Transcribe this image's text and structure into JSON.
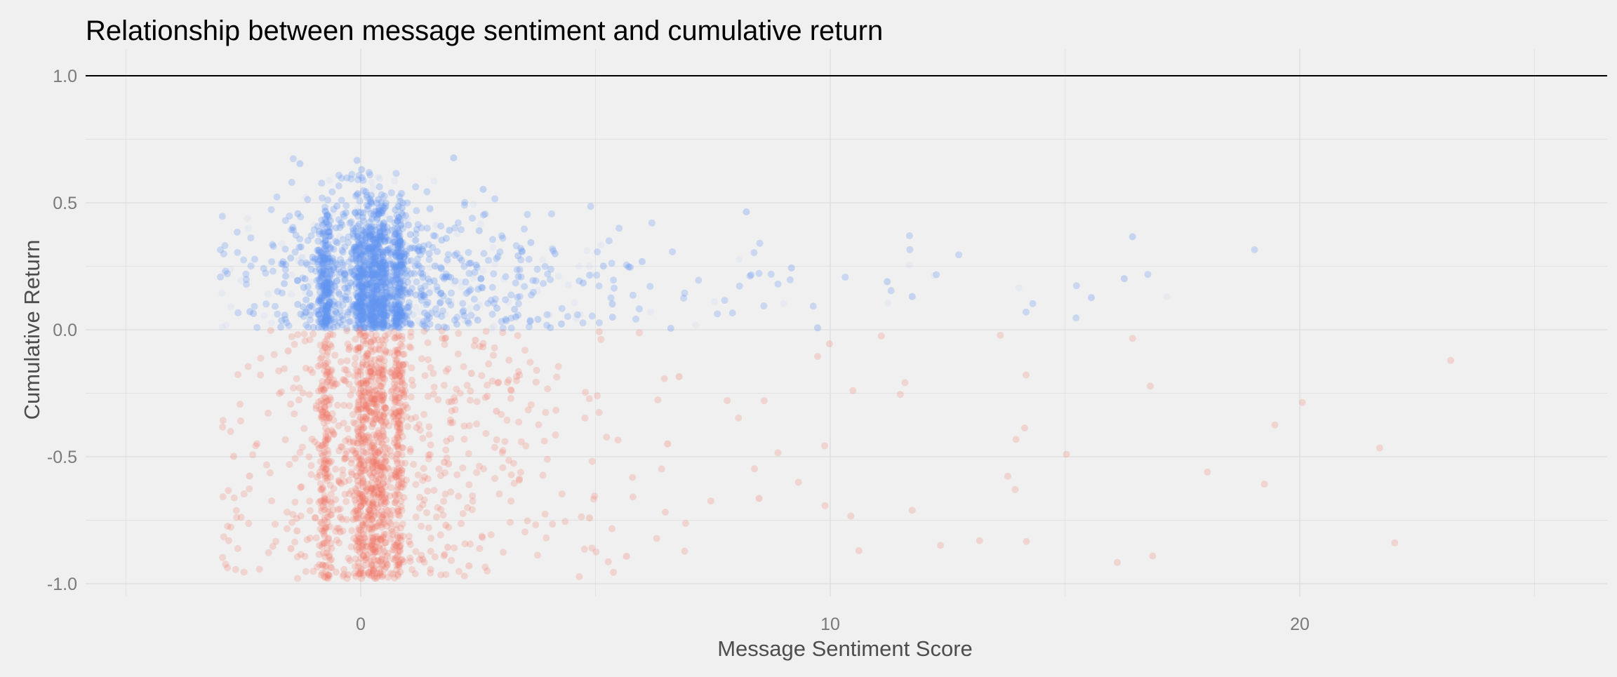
{
  "chart_data": {
    "type": "scatter",
    "title": "Relationship between message sentiment and cumulative return",
    "xlabel": "Message Sentiment Score",
    "ylabel": "Cumulative Return",
    "xlim": [
      -5.9,
      26.5
    ],
    "ylim": [
      -1.05,
      1.1
    ],
    "x_ticks": [
      0,
      10,
      20
    ],
    "x_tick_labels": [
      "0",
      "10",
      "20"
    ],
    "y_ticks": [
      -1.0,
      -0.5,
      0.0,
      0.5,
      1.0
    ],
    "y_tick_labels": [
      "-1.0",
      "-0.5",
      "0.0",
      "0.5",
      "1.0"
    ],
    "reference_line_y": 1.0,
    "grid": true,
    "legend": "none",
    "point_opacity": 0.06,
    "colors": {
      "background": "#f0f0f0",
      "grid": "#dcdcdc",
      "positive_return": "#619cff",
      "negative_return": "#f8766d",
      "reference_line": "#000000",
      "title": "#000000",
      "axis_label": "#4d4d4d",
      "tick_label": "#7a7a7a"
    },
    "point_groups": [
      {
        "group": "positive return",
        "color": "#619cff",
        "x_range": [
          -3.5,
          25
        ],
        "y_range": [
          0.0,
          0.7
        ]
      },
      {
        "group": "negative return",
        "color": "#f8766d",
        "x_range": [
          -3.5,
          25
        ],
        "y_range": [
          -0.98,
          0.0
        ]
      }
    ]
  }
}
